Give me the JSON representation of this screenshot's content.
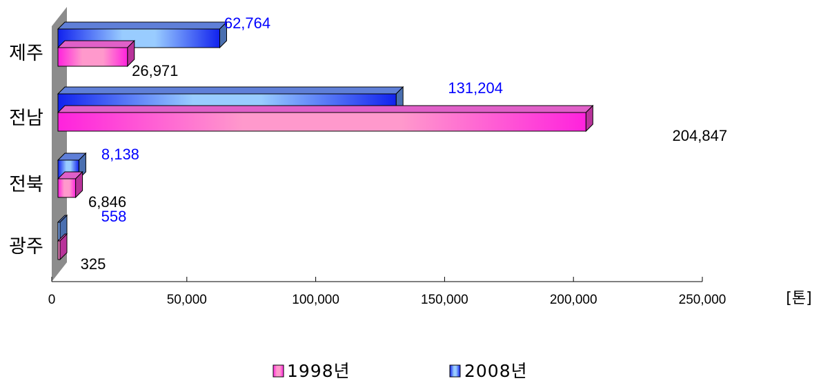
{
  "chart_data": {
    "type": "bar",
    "orientation": "horizontal",
    "style": "3d",
    "categories": [
      "제주",
      "전남",
      "전북",
      "광주"
    ],
    "series": [
      {
        "name": "1998년",
        "values": [
          26971,
          204847,
          6846,
          325
        ],
        "labels": [
          "26,971",
          "204,847",
          "6,846",
          "325"
        ],
        "color": "#ff33cc",
        "label_color": "#000000"
      },
      {
        "name": "2008년",
        "values": [
          62764,
          131204,
          8138,
          558
        ],
        "labels": [
          "62,764",
          "131,204",
          "8,138",
          "558"
        ],
        "color": "#1a33ff",
        "label_color": "#0000ff"
      }
    ],
    "xlim": [
      0,
      250000
    ],
    "xticks": [
      0,
      50000,
      100000,
      150000,
      200000,
      250000
    ],
    "xtick_labels": [
      "0",
      "50,000",
      "100,000",
      "150,000",
      "200,000",
      "250,000"
    ],
    "unit_label": "[톤]",
    "legend_position": "bottom",
    "grid": false
  }
}
